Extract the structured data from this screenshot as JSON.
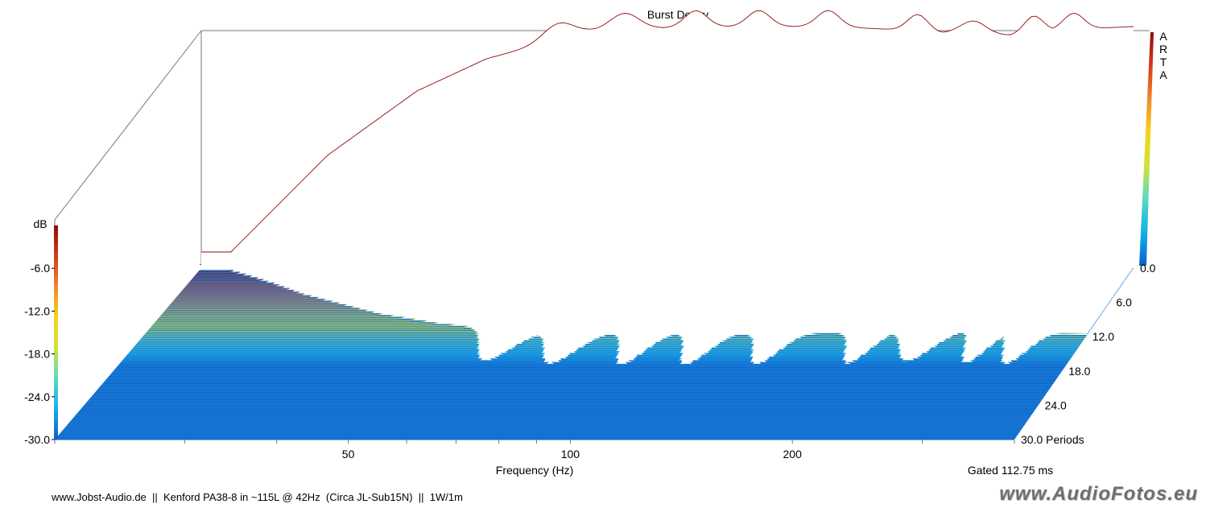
{
  "chart_data": {
    "type": "waterfall",
    "title": "Burst Decay",
    "xlabel": "Frequency (Hz)",
    "x_tick_labels": [
      "50",
      "100",
      "200"
    ],
    "x_ticks_hz": [
      50,
      100,
      200
    ],
    "xlim_hz": [
      20,
      400
    ],
    "x_scale": "log",
    "zlabel": "dB",
    "z_tick_labels": [
      "-6.0",
      "-12.0",
      "-18.0",
      "-24.0",
      "-30.0"
    ],
    "zlim_db": [
      -30,
      0
    ],
    "depth_tick_labels": [
      "0.0",
      "6.0",
      "12.0",
      "18.0",
      "24.0",
      "30.0 Periods"
    ],
    "depth_ticks_periods": [
      0,
      6,
      12,
      18,
      24,
      30
    ],
    "colormap": [
      "#0a5fcf",
      "#14b0e8",
      "#5ad8c8",
      "#cfe33a",
      "#f7d21a",
      "#f0882a",
      "#d63a1c",
      "#8c0c0c"
    ],
    "floor_color": "#1c7fd4",
    "gating_note": "Gated 112.75 ms",
    "vendor_mark": "ARTA",
    "baseline_response_db": [
      {
        "hz": 22,
        "db": -28
      },
      {
        "hz": 30,
        "db": -16
      },
      {
        "hz": 40,
        "db": -8
      },
      {
        "hz": 50,
        "db": -4
      },
      {
        "hz": 70,
        "db": -0.5
      },
      {
        "hz": 100,
        "db": 0
      },
      {
        "hz": 150,
        "db": 0
      },
      {
        "hz": 200,
        "db": -0.5
      },
      {
        "hz": 250,
        "db": -1.5
      },
      {
        "hz": 300,
        "db": -0.5
      },
      {
        "hz": 400,
        "db": 0
      }
    ]
  },
  "footer": {
    "caption": "www.Jobst-Audio.de  ||  Kenford PA38-8 in ~115L @ 42Hz  (Circa JL-Sub15N)  ||  1W/1m",
    "watermark": "www.AudioFotos.eu"
  }
}
